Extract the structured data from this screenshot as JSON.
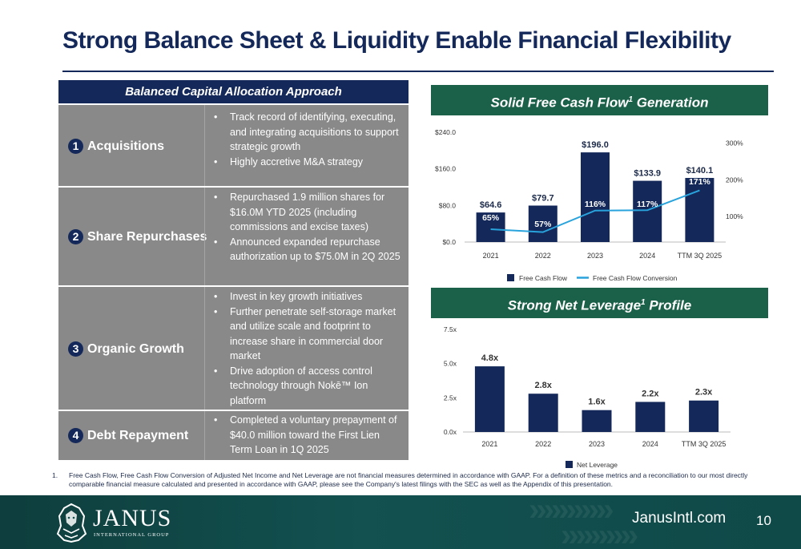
{
  "title": "Strong Balance Sheet & Liquidity Enable Financial Flexibility",
  "capital_allocation": {
    "header": "Balanced Capital Allocation Approach",
    "rows": [
      {
        "number": "1",
        "label": "Acquisitions",
        "bullets": [
          "Track record of identifying, executing, and integrating acquisitions to support strategic growth",
          "Highly accretive M&A strategy"
        ]
      },
      {
        "number": "2",
        "label": "Share Repurchases",
        "bullets": [
          "Repurchased 1.9 million shares for $16.0M YTD 2025 (including commissions and excise taxes)",
          "Announced expanded repurchase authorization up to $75.0M in 2Q 2025"
        ]
      },
      {
        "number": "3",
        "label": "Organic Growth",
        "bullets": [
          "Invest in key growth initiatives",
          "Further penetrate self-storage market and utilize scale and footprint to increase share in commercial door market",
          "Drive adoption of access control technology through Nokē™ Ion platform"
        ]
      },
      {
        "number": "4",
        "label": "Debt Repayment",
        "bullets": [
          "Completed a voluntary prepayment of $40.0 million toward the First Lien Term Loan in 1Q 2025"
        ]
      }
    ]
  },
  "fcf_section": {
    "title_main": "Solid Free Cash Flow",
    "title_sup": "1",
    "title_end": " Generation"
  },
  "leverage_section": {
    "title_main": "Strong Net Leverage",
    "title_sup": "1",
    "title_end": " Profile"
  },
  "chart_data": [
    {
      "type": "bar",
      "categories": [
        "2021",
        "2022",
        "2023",
        "2024",
        "TTM 3Q 2025"
      ],
      "series": [
        {
          "name": "Free Cash Flow",
          "kind": "bar",
          "axis": "left",
          "values": [
            64.6,
            79.7,
            196.0,
            133.9,
            140.1
          ],
          "labels": [
            "$64.6",
            "$79.7",
            "$196.0",
            "$133.9",
            "$140.1"
          ],
          "color": "#14295a"
        },
        {
          "name": "Free Cash Flow Conversion",
          "kind": "line",
          "axis": "right",
          "values": [
            65,
            57,
            116,
            117,
            171
          ],
          "labels": [
            "65%",
            "57%",
            "116%",
            "117%",
            "171%"
          ],
          "color": "#29a3dc"
        }
      ],
      "ylim": [
        0,
        240
      ],
      "yticks": [
        "$0.0",
        "$80.0",
        "$160.0",
        "$240.0"
      ],
      "y2lim": [
        30,
        330
      ],
      "y2ticks": [
        {
          "v": 100,
          "label": "100%"
        },
        {
          "v": 200,
          "label": "200%"
        },
        {
          "v": 300,
          "label": "300%"
        }
      ],
      "legend": "bottom",
      "grid": false
    },
    {
      "type": "bar",
      "categories": [
        "2021",
        "2022",
        "2023",
        "2024",
        "TTM 3Q 2025"
      ],
      "series": [
        {
          "name": "Net Leverage",
          "values": [
            4.8,
            2.8,
            1.6,
            2.2,
            2.3
          ],
          "labels": [
            "4.8x",
            "2.8x",
            "1.6x",
            "2.2x",
            "2.3x"
          ],
          "color": "#14295a"
        }
      ],
      "ylim": [
        0,
        7.5
      ],
      "yticks": [
        "0.0x",
        "2.5x",
        "5.0x",
        "7.5x"
      ],
      "legend": "bottom",
      "grid": false
    }
  ],
  "footnote": {
    "number": "1.",
    "text": "Free Cash Flow, Free Cash Flow Conversion of Adjusted Net Income and Net Leverage are not financial measures determined in accordance with GAAP. For a definition of these metrics and a reconciliation to our most directly comparable financial measure calculated and presented in accordance with GAAP, please see the Company's latest filings with the SEC as well as the Appendix of this presentation."
  },
  "footer": {
    "logo_word": "JANUS",
    "logo_sub": "INTERNATIONAL GROUP",
    "website": "JanusIntl.com",
    "page_number": "10",
    "bg_color": "#125150"
  }
}
